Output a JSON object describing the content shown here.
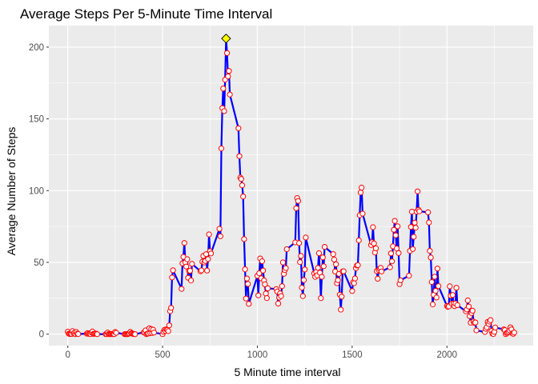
{
  "chart_data": {
    "type": "line",
    "title": "Average Steps Per 5-Minute Time Interval",
    "xlabel": "5 Minute time interval",
    "ylabel": "Average Number of Steps",
    "xlim": [
      -100,
      2455
    ],
    "ylim": [
      -8,
      215
    ],
    "xticks": [
      0,
      500,
      1000,
      1500,
      2000
    ],
    "yticks": [
      0,
      50,
      100,
      150,
      200
    ],
    "xminor": [
      250,
      750,
      1250,
      1750,
      2250
    ],
    "yminor": [
      25,
      75,
      125,
      175
    ],
    "grid": true,
    "line_color": "#0000ff",
    "point_edge_color": "#ff0000",
    "point_fill_color": "#ffffff",
    "highlight_fill_color": "#ffff00",
    "panel_color": "#ebebeb",
    "grid_color": "#ffffff",
    "highlight": {
      "x": 835,
      "y": 206
    },
    "points": [
      [
        0,
        1.7
      ],
      [
        5,
        0.3
      ],
      [
        10,
        0.1
      ],
      [
        15,
        0.2
      ],
      [
        20,
        0.1
      ],
      [
        25,
        2.1
      ],
      [
        30,
        0.5
      ],
      [
        35,
        0.9
      ],
      [
        40,
        0
      ],
      [
        45,
        1.5
      ],
      [
        50,
        0.3
      ],
      [
        55,
        0.1
      ],
      [
        100,
        0.3
      ],
      [
        105,
        0.7
      ],
      [
        110,
        0.2
      ],
      [
        115,
        0.3
      ],
      [
        120,
        0
      ],
      [
        125,
        1.1
      ],
      [
        130,
        1.8
      ],
      [
        135,
        0.2
      ],
      [
        140,
        0.2
      ],
      [
        145,
        0.4
      ],
      [
        150,
        0.3
      ],
      [
        155,
        0
      ],
      [
        200,
        0
      ],
      [
        205,
        0
      ],
      [
        210,
        1.1
      ],
      [
        215,
        0.1
      ],
      [
        220,
        0
      ],
      [
        225,
        0.1
      ],
      [
        230,
        0
      ],
      [
        235,
        0.2
      ],
      [
        240,
        0
      ],
      [
        245,
        0
      ],
      [
        250,
        1.5
      ],
      [
        255,
        0.9
      ],
      [
        300,
        0
      ],
      [
        305,
        0
      ],
      [
        310,
        0
      ],
      [
        315,
        0
      ],
      [
        320,
        0.2
      ],
      [
        325,
        0.6
      ],
      [
        330,
        1.6
      ],
      [
        335,
        0.6
      ],
      [
        340,
        0.5
      ],
      [
        345,
        0.1
      ],
      [
        350,
        0
      ],
      [
        355,
        0
      ],
      [
        400,
        1.2
      ],
      [
        405,
        0.9
      ],
      [
        410,
        2.6
      ],
      [
        415,
        0
      ],
      [
        420,
        0.3
      ],
      [
        425,
        0.4
      ],
      [
        430,
        4.1
      ],
      [
        435,
        0.7
      ],
      [
        440,
        3.5
      ],
      [
        445,
        0.8
      ],
      [
        450,
        3.1
      ],
      [
        455,
        1.1
      ],
      [
        500,
        0
      ],
      [
        505,
        1.6
      ],
      [
        510,
        3
      ],
      [
        515,
        2.2
      ],
      [
        520,
        3.3
      ],
      [
        525,
        3
      ],
      [
        530,
        2.1
      ],
      [
        535,
        6.1
      ],
      [
        540,
        16
      ],
      [
        545,
        18.3
      ],
      [
        550,
        39.5
      ],
      [
        555,
        44.5
      ],
      [
        600,
        31.5
      ],
      [
        605,
        49.3
      ],
      [
        610,
        53.8
      ],
      [
        615,
        63.5
      ],
      [
        620,
        50
      ],
      [
        625,
        47.1
      ],
      [
        630,
        52.2
      ],
      [
        635,
        39.3
      ],
      [
        640,
        44
      ],
      [
        645,
        44.2
      ],
      [
        650,
        37.4
      ],
      [
        655,
        49
      ],
      [
        700,
        43.8
      ],
      [
        705,
        44.4
      ],
      [
        710,
        50.5
      ],
      [
        715,
        54.5
      ],
      [
        720,
        49.9
      ],
      [
        725,
        51
      ],
      [
        730,
        55.7
      ],
      [
        735,
        44.3
      ],
      [
        740,
        52.3
      ],
      [
        745,
        69.5
      ],
      [
        750,
        57.8
      ],
      [
        755,
        56.2
      ],
      [
        800,
        73.4
      ],
      [
        805,
        68.2
      ],
      [
        810,
        129.4
      ],
      [
        815,
        157.5
      ],
      [
        820,
        171.2
      ],
      [
        825,
        155.4
      ],
      [
        830,
        177.3
      ],
      [
        835,
        206.2
      ],
      [
        840,
        195.9
      ],
      [
        845,
        179.6
      ],
      [
        850,
        183.4
      ],
      [
        855,
        167
      ],
      [
        900,
        143.5
      ],
      [
        905,
        124
      ],
      [
        910,
        109.1
      ],
      [
        915,
        108.1
      ],
      [
        920,
        103.7
      ],
      [
        925,
        95.9
      ],
      [
        930,
        66.2
      ],
      [
        935,
        45.2
      ],
      [
        940,
        24.8
      ],
      [
        945,
        38.8
      ],
      [
        950,
        34.98
      ],
      [
        955,
        21.1
      ],
      [
        1000,
        40.6
      ],
      [
        1005,
        27
      ],
      [
        1010,
        42.4
      ],
      [
        1015,
        52.7
      ],
      [
        1020,
        38.9
      ],
      [
        1025,
        50.8
      ],
      [
        1030,
        44.3
      ],
      [
        1035,
        37.4
      ],
      [
        1040,
        34.7
      ],
      [
        1045,
        28.3
      ],
      [
        1050,
        25.1
      ],
      [
        1055,
        31.9
      ],
      [
        1100,
        31.4
      ],
      [
        1105,
        29.7
      ],
      [
        1110,
        21.3
      ],
      [
        1115,
        25.5
      ],
      [
        1120,
        28.4
      ],
      [
        1125,
        26.5
      ],
      [
        1130,
        33.4
      ],
      [
        1135,
        49.98
      ],
      [
        1140,
        42
      ],
      [
        1145,
        44.6
      ],
      [
        1150,
        46
      ],
      [
        1155,
        59.2
      ],
      [
        1200,
        63.9
      ],
      [
        1205,
        87.7
      ],
      [
        1210,
        94.8
      ],
      [
        1215,
        92.8
      ],
      [
        1220,
        63.4
      ],
      [
        1225,
        50.2
      ],
      [
        1230,
        54.5
      ],
      [
        1235,
        32.4
      ],
      [
        1240,
        26.5
      ],
      [
        1245,
        37.7
      ],
      [
        1250,
        45.1
      ],
      [
        1255,
        67.3
      ],
      [
        1300,
        42.3
      ],
      [
        1305,
        39.9
      ],
      [
        1310,
        43.3
      ],
      [
        1315,
        40.98
      ],
      [
        1320,
        46.2
      ],
      [
        1325,
        56.4
      ],
      [
        1330,
        42.8
      ],
      [
        1335,
        25.1
      ],
      [
        1340,
        39.97
      ],
      [
        1345,
        53.5
      ],
      [
        1350,
        47.3
      ],
      [
        1355,
        60.8
      ],
      [
        1400,
        55.8
      ],
      [
        1405,
        51.96
      ],
      [
        1410,
        43.6
      ],
      [
        1415,
        48.7
      ],
      [
        1420,
        35.5
      ],
      [
        1425,
        37.6
      ],
      [
        1430,
        42
      ],
      [
        1435,
        27.5
      ],
      [
        1440,
        17.1
      ],
      [
        1445,
        26.1
      ],
      [
        1450,
        43.6
      ],
      [
        1455,
        43.8
      ],
      [
        1500,
        30
      ],
      [
        1505,
        36.1
      ],
      [
        1510,
        35.5
      ],
      [
        1515,
        38.8
      ],
      [
        1520,
        45.96
      ],
      [
        1525,
        47.8
      ],
      [
        1530,
        48.1
      ],
      [
        1535,
        65.3
      ],
      [
        1540,
        82.9
      ],
      [
        1545,
        98.7
      ],
      [
        1550,
        102.1
      ],
      [
        1555,
        83.96
      ],
      [
        1600,
        62.1
      ],
      [
        1605,
        64.1
      ],
      [
        1610,
        74.5
      ],
      [
        1615,
        63.2
      ],
      [
        1620,
        56.9
      ],
      [
        1625,
        59.8
      ],
      [
        1630,
        43.9
      ],
      [
        1635,
        38.6
      ],
      [
        1640,
        44.7
      ],
      [
        1645,
        45.5
      ],
      [
        1650,
        46.2
      ],
      [
        1655,
        43.7
      ],
      [
        1700,
        46.6
      ],
      [
        1705,
        56.3
      ],
      [
        1710,
        50.7
      ],
      [
        1715,
        61.2
      ],
      [
        1720,
        72.7
      ],
      [
        1725,
        78.9
      ],
      [
        1730,
        68.9
      ],
      [
        1735,
        59.7
      ],
      [
        1740,
        75.1
      ],
      [
        1745,
        56.5
      ],
      [
        1750,
        34.8
      ],
      [
        1755,
        37.5
      ],
      [
        1800,
        40.7
      ],
      [
        1805,
        58
      ],
      [
        1810,
        74.7
      ],
      [
        1815,
        85.3
      ],
      [
        1820,
        59.3
      ],
      [
        1825,
        67.8
      ],
      [
        1830,
        77.7
      ],
      [
        1835,
        74.2
      ],
      [
        1840,
        85.3
      ],
      [
        1845,
        99.5
      ],
      [
        1850,
        86.6
      ],
      [
        1855,
        85.6
      ],
      [
        1900,
        84.9
      ],
      [
        1905,
        77.8
      ],
      [
        1910,
        58
      ],
      [
        1915,
        53.4
      ],
      [
        1920,
        36.3
      ],
      [
        1925,
        20.7
      ],
      [
        1930,
        27.4
      ],
      [
        1935,
        40
      ],
      [
        1940,
        30.2
      ],
      [
        1945,
        25.5
      ],
      [
        1950,
        45.7
      ],
      [
        1955,
        33.5
      ],
      [
        2000,
        19.6
      ],
      [
        2005,
        19
      ],
      [
        2010,
        19.3
      ],
      [
        2015,
        33.3
      ],
      [
        2020,
        26.8
      ],
      [
        2025,
        21.2
      ],
      [
        2030,
        27.3
      ],
      [
        2035,
        21.3
      ],
      [
        2040,
        19.5
      ],
      [
        2045,
        21.3
      ],
      [
        2050,
        32.3
      ],
      [
        2055,
        20.2
      ],
      [
        2100,
        15.9
      ],
      [
        2105,
        17.2
      ],
      [
        2110,
        23.5
      ],
      [
        2115,
        19.2
      ],
      [
        2120,
        12.5
      ],
      [
        2125,
        8
      ],
      [
        2130,
        14.7
      ],
      [
        2135,
        16.3
      ],
      [
        2140,
        8.7
      ],
      [
        2145,
        7.8
      ],
      [
        2150,
        8.1
      ],
      [
        2155,
        2.6
      ],
      [
        2200,
        1.5
      ],
      [
        2205,
        3.7
      ],
      [
        2210,
        4.8
      ],
      [
        2215,
        8.5
      ],
      [
        2220,
        7.1
      ],
      [
        2225,
        8.7
      ],
      [
        2230,
        9.8
      ],
      [
        2235,
        2.2
      ],
      [
        2240,
        0.3
      ],
      [
        2245,
        0.1
      ],
      [
        2250,
        1.6
      ],
      [
        2255,
        4.6
      ],
      [
        2300,
        3.3
      ],
      [
        2305,
        2.8
      ],
      [
        2310,
        0
      ],
      [
        2315,
        0.8
      ],
      [
        2320,
        1
      ],
      [
        2325,
        1.6
      ],
      [
        2330,
        2.6
      ],
      [
        2335,
        4.7
      ],
      [
        2340,
        3.3
      ],
      [
        2345,
        0.6
      ],
      [
        2350,
        0.2
      ],
      [
        2355,
        1.1
      ]
    ]
  }
}
